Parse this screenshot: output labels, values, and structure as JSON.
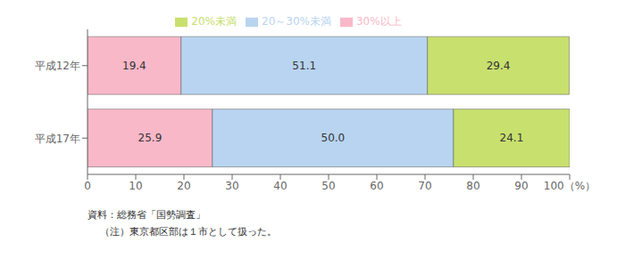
{
  "chart_data": {
    "type": "bar",
    "orientation": "horizontal",
    "stacked": true,
    "data_labels": true,
    "grid": false,
    "legend": "top",
    "categories": [
      "平成12年",
      "平成17年"
    ],
    "series": [
      {
        "name": "30%以上",
        "color": "#f9b8c8",
        "values": [
          19.4,
          25.9
        ],
        "value_labels": [
          "19.4",
          "25.9"
        ]
      },
      {
        "name": "20～30%未満",
        "color": "#b8d4f0",
        "values": [
          51.1,
          50.0
        ],
        "value_labels": [
          "51.1",
          "50.0"
        ]
      },
      {
        "name": "20%未満",
        "color": "#c8e06e",
        "values": [
          29.4,
          24.1
        ],
        "value_labels": [
          "29.4",
          "24.1"
        ]
      }
    ],
    "xlim": [
      0,
      100
    ],
    "xticks": [
      0,
      10,
      20,
      30,
      40,
      50,
      60,
      70,
      80,
      90,
      {
        "value": 100,
        "label": "100（%）"
      }
    ],
    "annotations": [
      "資料：総務省「国勢調査」",
      "（注）東京都区部は１市として扱った。"
    ]
  }
}
